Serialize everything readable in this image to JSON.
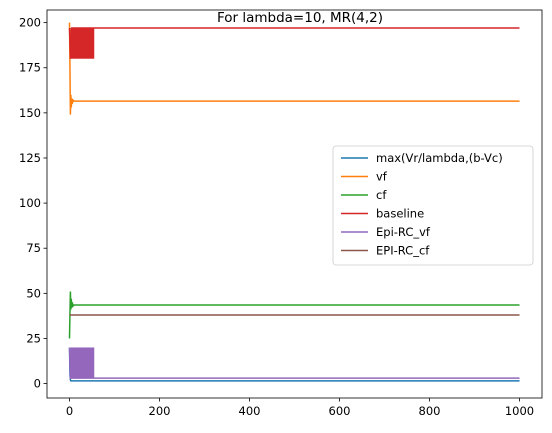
{
  "chart_data": {
    "type": "line",
    "title": "For lambda=10, MR(4,2)",
    "xlabel": "",
    "ylabel": "",
    "xlim": [
      -50,
      1050
    ],
    "ylim": [
      -8,
      207
    ],
    "xticks": [
      0,
      200,
      400,
      600,
      800,
      1000
    ],
    "yticks": [
      0,
      25,
      50,
      75,
      100,
      125,
      150,
      175,
      200
    ],
    "grid": false,
    "legend_position": "center-right",
    "series": [
      {
        "name": "max(Vr/lambda,(b-Vc)",
        "color": "#1f77b4",
        "x": [
          0,
          1,
          2,
          3,
          5,
          1000
        ],
        "y": [
          20,
          5,
          2,
          1.5,
          1.5,
          1.5
        ]
      },
      {
        "name": "vf",
        "color": "#ff7f0e",
        "x": [
          0,
          1,
          2,
          3,
          4,
          5,
          6,
          8,
          10,
          1000
        ],
        "y": [
          200,
          175,
          149,
          160,
          153,
          158,
          155,
          157,
          156.5,
          156.5
        ]
      },
      {
        "name": "cf",
        "color": "#2ca02c",
        "x": [
          0,
          1,
          2,
          3,
          4,
          5,
          6,
          8,
          10,
          1000
        ],
        "y": [
          25,
          39,
          51,
          41,
          47,
          42,
          45,
          43,
          43.5,
          43.5
        ]
      },
      {
        "name": "baseline",
        "color": "#d62728",
        "x": [
          0,
          2,
          5,
          55,
          1000
        ],
        "y": [
          197,
          180,
          197,
          197,
          197
        ],
        "band": {
          "x_start": 2,
          "x_end": 55,
          "low": 180,
          "high": 197
        }
      },
      {
        "name": "Epi-RC_vf",
        "color": "#9467bd",
        "x": [
          0,
          2,
          5,
          55,
          1000
        ],
        "y": [
          20,
          3,
          3,
          3,
          3
        ],
        "band": {
          "x_start": 2,
          "x_end": 55,
          "low": 3,
          "high": 20
        }
      },
      {
        "name": "EPI-RC_cf",
        "color": "#8c564b",
        "x": [
          0,
          1000
        ],
        "y": [
          38,
          38
        ]
      }
    ]
  }
}
